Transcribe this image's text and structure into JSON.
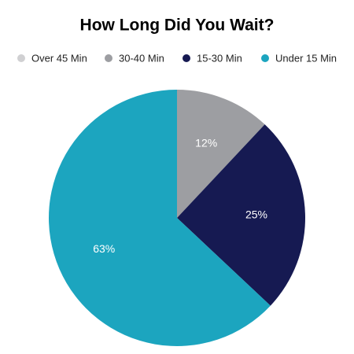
{
  "chart_data": {
    "type": "pie",
    "title": "How Long Did You Wait?",
    "categories": [
      "Over 45 Min",
      "30-40 Min",
      "15-30 Min",
      "Under 15 Min"
    ],
    "values": [
      0,
      12,
      25,
      63
    ],
    "value_labels": [
      null,
      "12%",
      "25%",
      "63%"
    ],
    "colors": [
      "#d0d0d2",
      "#9d9ea2",
      "#161a52",
      "#1ca5bf"
    ],
    "legend": "top"
  }
}
